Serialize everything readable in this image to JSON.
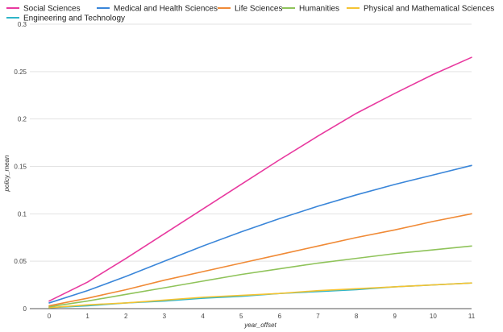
{
  "chart_data": {
    "type": "line",
    "title": "",
    "xlabel": "year_offset",
    "ylabel": "policy_mean",
    "x": [
      0,
      1,
      2,
      3,
      4,
      5,
      6,
      7,
      8,
      9,
      10,
      11
    ],
    "xlim": [
      0,
      11
    ],
    "ylim": [
      0,
      0.3
    ],
    "x_ticks": [
      "0",
      "1",
      "2",
      "3",
      "4",
      "5",
      "6",
      "7",
      "8",
      "9",
      "10",
      "11"
    ],
    "y_ticks": [
      "0",
      "0.05",
      "0.1",
      "0.15",
      "0.2",
      "0.25",
      "0.3"
    ],
    "y_tick_values": [
      0,
      0.05,
      0.1,
      0.15,
      0.2,
      0.25,
      0.3
    ],
    "grid": true,
    "legend_position": "top",
    "series": [
      {
        "name": "Social Sciences",
        "color": "#e8399f",
        "values": [
          0.008,
          0.028,
          0.053,
          0.079,
          0.105,
          0.131,
          0.157,
          0.182,
          0.206,
          0.227,
          0.247,
          0.265
        ]
      },
      {
        "name": "Medical and Health Sciences",
        "color": "#3a86d9",
        "values": [
          0.006,
          0.019,
          0.034,
          0.05,
          0.066,
          0.081,
          0.095,
          0.108,
          0.12,
          0.131,
          0.141,
          0.151
        ]
      },
      {
        "name": "Life Sciences",
        "color": "#f08a36",
        "values": [
          0.003,
          0.011,
          0.02,
          0.03,
          0.039,
          0.048,
          0.057,
          0.066,
          0.075,
          0.083,
          0.092,
          0.1
        ]
      },
      {
        "name": "Humanities",
        "color": "#8fc35a",
        "values": [
          0.002,
          0.008,
          0.015,
          0.022,
          0.029,
          0.036,
          0.042,
          0.048,
          0.053,
          0.058,
          0.062,
          0.066
        ]
      },
      {
        "name": "Physical and Mathematical Sciences",
        "color": "#f5c332",
        "values": [
          0.001,
          0.004,
          0.006,
          0.009,
          0.012,
          0.014,
          0.016,
          0.019,
          0.021,
          0.023,
          0.025,
          0.027
        ]
      },
      {
        "name": "Engineering and Technology",
        "color": "#2fb5c8",
        "values": [
          0.001,
          0.003,
          0.006,
          0.008,
          0.011,
          0.013,
          0.016,
          0.018,
          0.02,
          0.023,
          0.025,
          0.027
        ]
      }
    ]
  }
}
